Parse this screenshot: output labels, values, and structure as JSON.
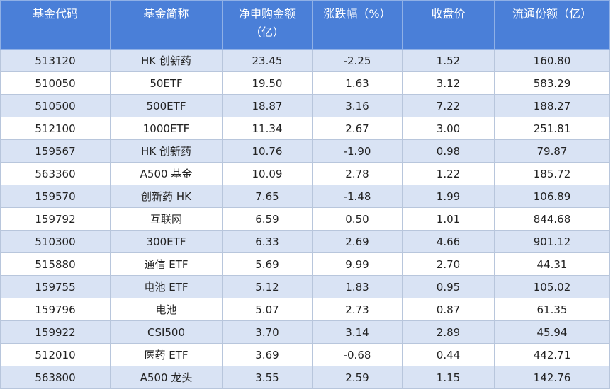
{
  "table": {
    "header": [
      "基金代码",
      "基金简称",
      "净申购金额（亿）",
      "涨跌幅（%）",
      "收盘价",
      "流通份额（亿）"
    ],
    "rows": [
      [
        "513120",
        "HK 创新药",
        "23.45",
        "-2.25",
        "1.52",
        "160.80"
      ],
      [
        "510050",
        "50ETF",
        "19.50",
        "1.63",
        "3.12",
        "583.29"
      ],
      [
        "510500",
        "500ETF",
        "18.87",
        "3.16",
        "7.22",
        "188.27"
      ],
      [
        "512100",
        "1000ETF",
        "11.34",
        "2.67",
        "3.00",
        "251.81"
      ],
      [
        "159567",
        "HK 创新药",
        "10.76",
        "-1.90",
        "0.98",
        "79.87"
      ],
      [
        "563360",
        "A500 基金",
        "10.09",
        "2.78",
        "1.22",
        "185.72"
      ],
      [
        "159570",
        "创新药 HK",
        "7.65",
        "-1.48",
        "1.99",
        "106.89"
      ],
      [
        "159792",
        "互联网",
        "6.59",
        "0.50",
        "1.01",
        "844.68"
      ],
      [
        "510300",
        "300ETF",
        "6.33",
        "2.69",
        "4.66",
        "901.12"
      ],
      [
        "515880",
        "通信 ETF",
        "5.69",
        "9.99",
        "2.70",
        "44.31"
      ],
      [
        "159755",
        "电池 ETF",
        "5.12",
        "1.83",
        "0.95",
        "105.02"
      ],
      [
        "159796",
        "电池",
        "5.07",
        "2.73",
        "0.87",
        "61.35"
      ],
      [
        "159922",
        "CSI500",
        "3.70",
        "3.14",
        "2.89",
        "45.94"
      ],
      [
        "512010",
        "医药 ETF",
        "3.69",
        "-0.68",
        "0.44",
        "442.71"
      ],
      [
        "563800",
        "A500 龙头",
        "3.55",
        "2.59",
        "1.15",
        "142.76"
      ]
    ]
  }
}
